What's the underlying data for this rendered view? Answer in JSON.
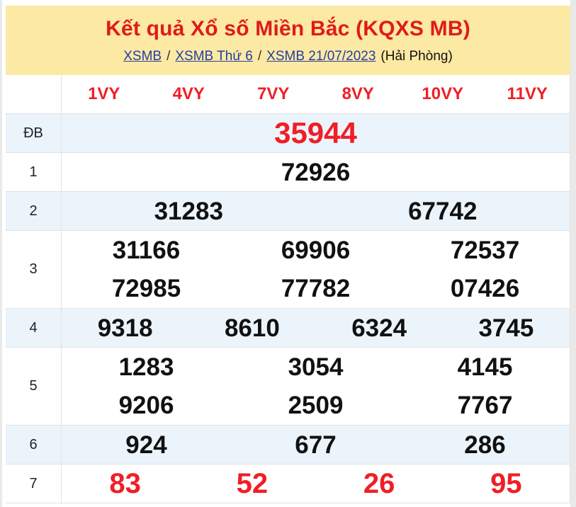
{
  "page": {
    "title": "Kết quả Xổ số Miền Bắc (KQXS MB)",
    "breadcrumb": {
      "links": [
        "XSMB",
        "XSMB Thứ 6",
        "XSMB 21/07/2023"
      ],
      "separator": "/",
      "suffix": "(Hải Phòng)"
    }
  },
  "colors": {
    "masthead_background": "#fce9a3",
    "title_red": "#e01a1a",
    "number_red": "#f01e26",
    "link_blue": "#253da1",
    "zebra_row_blue": "#ebf4fb",
    "border_gray": "#e2e2e2"
  },
  "table": {
    "column_headers": [
      "1VY",
      "4VY",
      "7VY",
      "8VY",
      "10VY",
      "11VY"
    ],
    "rows": [
      {
        "label": "ĐB",
        "style": "special",
        "lines": [
          [
            "35944"
          ]
        ]
      },
      {
        "label": "1",
        "style": "normal",
        "lines": [
          [
            "72926"
          ]
        ]
      },
      {
        "label": "2",
        "style": "normal",
        "lines": [
          [
            "31283",
            "67742"
          ]
        ]
      },
      {
        "label": "3",
        "style": "normal",
        "lines": [
          [
            "31166",
            "69906",
            "72537"
          ],
          [
            "72985",
            "77782",
            "07426"
          ]
        ]
      },
      {
        "label": "4",
        "style": "normal",
        "lines": [
          [
            "9318",
            "8610",
            "6324",
            "3745"
          ]
        ]
      },
      {
        "label": "5",
        "style": "normal",
        "lines": [
          [
            "1283",
            "3054",
            "4145"
          ],
          [
            "9206",
            "2509",
            "7767"
          ]
        ]
      },
      {
        "label": "6",
        "style": "normal",
        "lines": [
          [
            "924",
            "677",
            "286"
          ]
        ]
      },
      {
        "label": "7",
        "style": "last",
        "lines": [
          [
            "83",
            "52",
            "26",
            "95"
          ]
        ]
      }
    ]
  }
}
